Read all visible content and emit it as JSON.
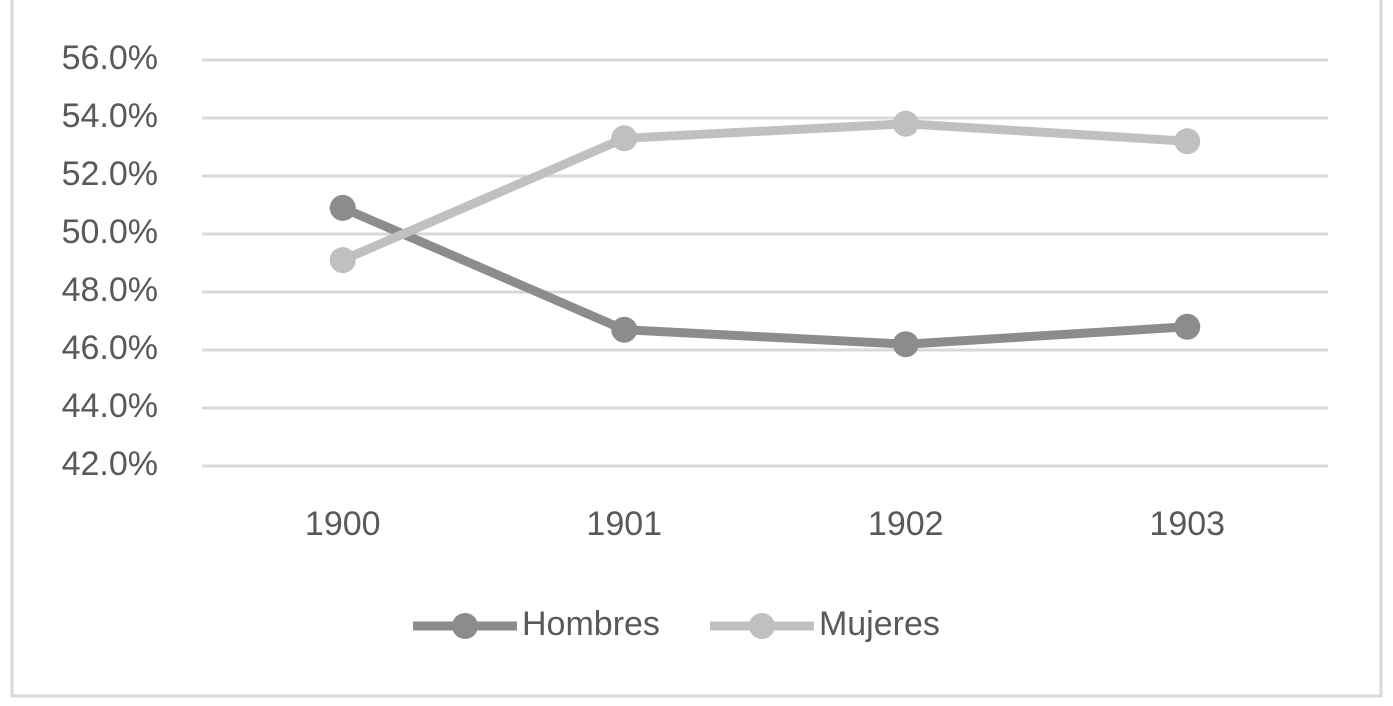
{
  "chart_data": {
    "type": "line",
    "categories": [
      "1900",
      "1901",
      "1902",
      "1903"
    ],
    "series": [
      {
        "name": "Hombres",
        "color": "#8c8c8c",
        "values": [
          50.9,
          46.7,
          46.2,
          46.8
        ]
      },
      {
        "name": "Mujeres",
        "color": "#c0c0c0",
        "values": [
          49.1,
          53.3,
          53.8,
          53.2
        ]
      }
    ],
    "ylim": [
      42,
      56
    ],
    "yticks": [
      {
        "value": 42,
        "label": "42.0%"
      },
      {
        "value": 44,
        "label": "44.0%"
      },
      {
        "value": 46,
        "label": "46.0%"
      },
      {
        "value": 48,
        "label": "48.0%"
      },
      {
        "value": 50,
        "label": "50.0%"
      },
      {
        "value": 52,
        "label": "52.0%"
      },
      {
        "value": 54,
        "label": "54.0%"
      },
      {
        "value": 56,
        "label": "56.0%"
      }
    ],
    "grid": true,
    "legend": "bottom"
  }
}
